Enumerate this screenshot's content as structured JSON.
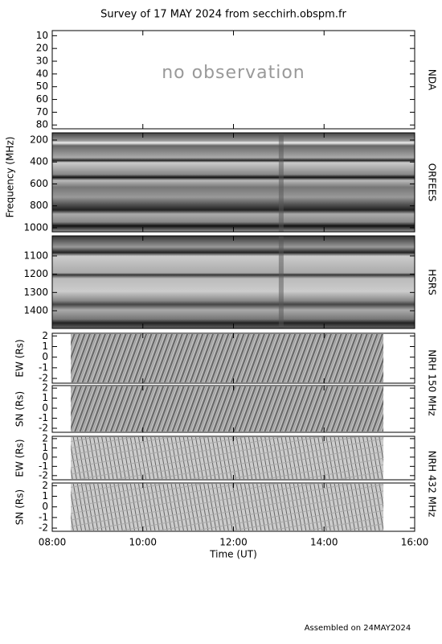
{
  "title": "Survey of 17 MAY 2024 from secchirh.obspm.fr",
  "footer": "Assembled on 24MAY2024",
  "chart_data": [
    {
      "type": "spectrogram",
      "instrument": "NDA",
      "annotation": "no observation",
      "ylim": [
        83,
        6
      ],
      "yticks": [
        10,
        20,
        30,
        40,
        50,
        60,
        70,
        80
      ],
      "texture": "none"
    },
    {
      "type": "spectrogram",
      "instrument": "ORFEES",
      "ylabel": "Frequency (MHz)",
      "ylim": [
        1037,
        134
      ],
      "yticks": [
        200,
        400,
        600,
        800,
        1000
      ],
      "texture": "orfees"
    },
    {
      "type": "spectrogram",
      "instrument": "HSRS",
      "ylim": [
        1497,
        990
      ],
      "yticks": [
        1100,
        1200,
        1300,
        1400
      ],
      "texture": "hsrs"
    },
    {
      "type": "spectrogram",
      "instrument": "NRH 150 MHz",
      "ylabel": "EW (Rs)",
      "ylim": [
        -2.45,
        2.25
      ],
      "yticks": [
        -2,
        -1,
        0,
        1,
        2
      ],
      "xrange": [
        8.41,
        15.31
      ],
      "texture": "nrh"
    },
    {
      "type": "spectrogram",
      "ylabel": "SN (Rs)",
      "ylim": [
        -2.4,
        2.25
      ],
      "yticks": [
        -2,
        -1,
        0,
        1,
        2
      ],
      "xrange": [
        8.41,
        15.31
      ],
      "texture": "nrh"
    },
    {
      "type": "spectrogram",
      "instrument": "NRH 432 MHz",
      "ylabel": "EW (Rs)",
      "ylim": [
        -2.45,
        2.25
      ],
      "yticks": [
        -2,
        -1,
        0,
        1,
        2
      ],
      "xrange": [
        8.41,
        15.31
      ],
      "texture": "nrh2"
    },
    {
      "type": "spectrogram",
      "ylabel": "SN (Rs)",
      "xlabel": "Time (UT)",
      "ylim": [
        -2.3,
        2.25
      ],
      "yticks": [
        -2,
        -1,
        0,
        1,
        2
      ],
      "xrange": [
        8.41,
        15.31
      ],
      "texture": "nrh2",
      "xlim": [
        8,
        16
      ],
      "xticks": [
        {
          "value": 8,
          "label": "08:00"
        },
        {
          "value": 10,
          "label": "10:00"
        },
        {
          "value": 12,
          "label": "12:00"
        },
        {
          "value": 14,
          "label": "14:00"
        },
        {
          "value": 16,
          "label": "16:00"
        }
      ]
    }
  ]
}
